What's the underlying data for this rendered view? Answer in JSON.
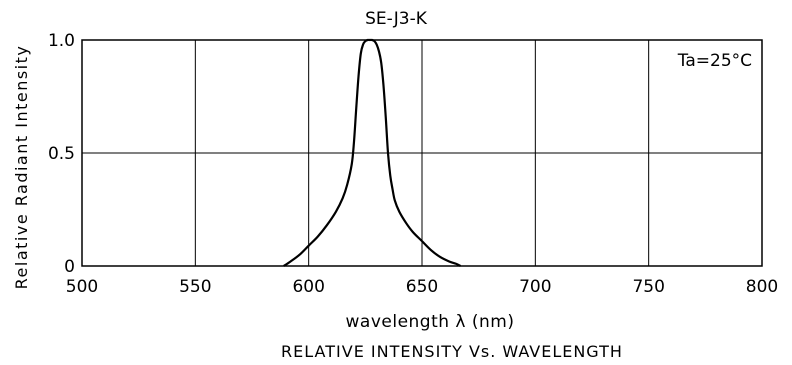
{
  "chart_data": {
    "type": "line",
    "title": "SE-J3-K",
    "xlabel": "wavelength λ  (nm)",
    "ylabel": "Relative Radiant Intensity",
    "caption": "RELATIVE INTENSITY Vs. WAVELENGTH",
    "annotation": "Ta=25°C",
    "xlim": [
      500,
      800
    ],
    "ylim": [
      0,
      1.0
    ],
    "x_ticks": [
      500,
      550,
      600,
      650,
      700,
      750,
      800
    ],
    "x_tick_labels": [
      "500",
      "550",
      "600",
      "650",
      "700",
      "750",
      "800"
    ],
    "y_ticks": [
      0,
      0.5,
      1.0
    ],
    "y_tick_labels": [
      "0",
      "0.5",
      "1.0"
    ],
    "grid": true,
    "series": [
      {
        "x": [
          589,
          592,
          596,
          600,
          604,
          608,
          612,
          615,
          617,
          619,
          620,
          621,
          622,
          623,
          624,
          625,
          626,
          627,
          628,
          629,
          630,
          631,
          632,
          633,
          634,
          635,
          636,
          637,
          638,
          640,
          643,
          646,
          650,
          654,
          658,
          662,
          665,
          667
        ],
        "y": [
          0.0,
          0.02,
          0.05,
          0.09,
          0.13,
          0.18,
          0.24,
          0.3,
          0.36,
          0.45,
          0.55,
          0.7,
          0.84,
          0.94,
          0.98,
          0.995,
          1.0,
          1.0,
          1.0,
          0.995,
          0.98,
          0.95,
          0.9,
          0.8,
          0.66,
          0.5,
          0.4,
          0.34,
          0.29,
          0.24,
          0.19,
          0.15,
          0.11,
          0.07,
          0.04,
          0.02,
          0.01,
          0.0
        ]
      }
    ]
  }
}
